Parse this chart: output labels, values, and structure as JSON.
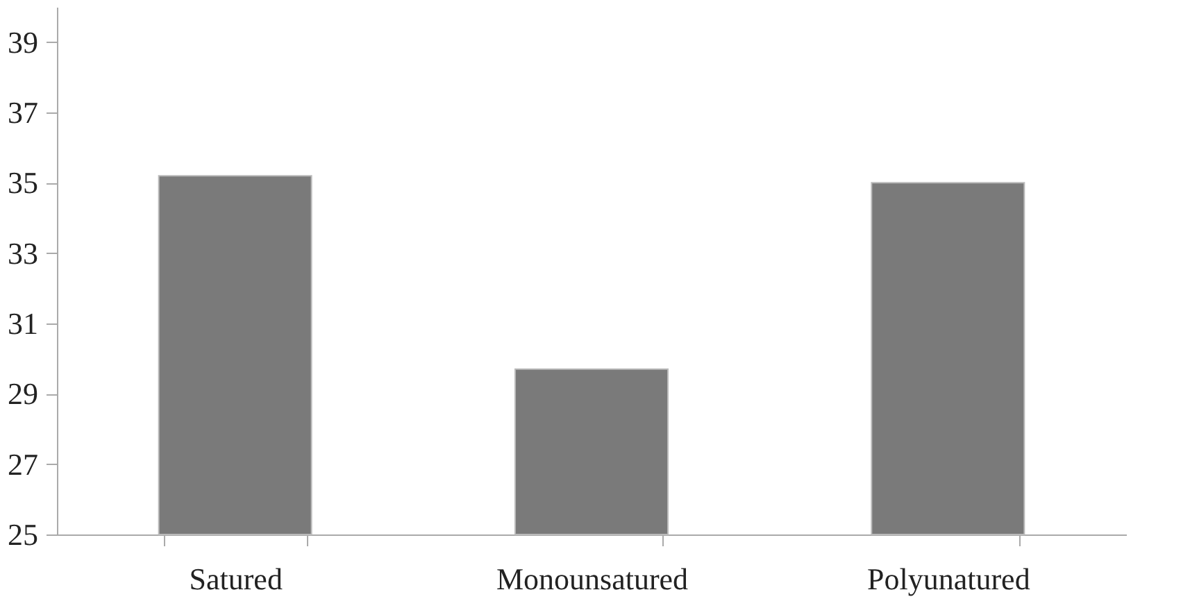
{
  "chart_data": {
    "type": "bar",
    "categories": [
      "Satured",
      "Monounsatured",
      "Polyunatured"
    ],
    "values": [
      35.2,
      29.7,
      35.0
    ],
    "color": "#7a7a7a",
    "ylim": [
      25,
      40
    ],
    "yticks": [
      25,
      27,
      29,
      31,
      33,
      35,
      37,
      39
    ],
    "grid": false
  }
}
